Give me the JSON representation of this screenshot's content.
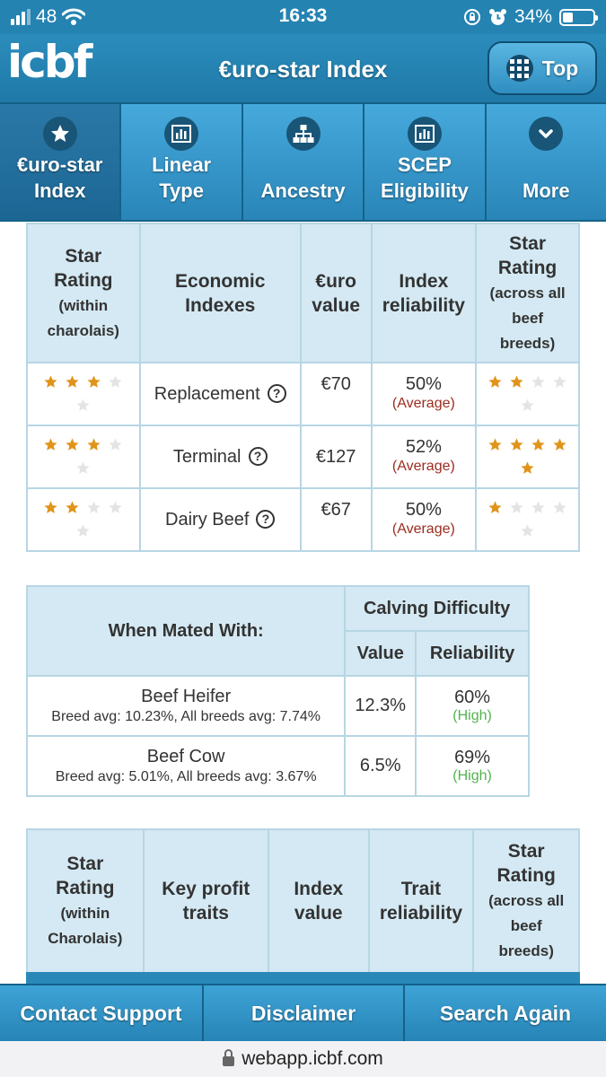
{
  "status_bar": {
    "signal": "48",
    "time": "16:33",
    "battery": "34%",
    "battery_level": 0.34
  },
  "header": {
    "logo": "icbf",
    "title": "€uro-star Index",
    "top_button": "Top"
  },
  "tabs": [
    {
      "label_line1": "€uro-star",
      "label_line2": "Index",
      "icon": "star-icon",
      "active": true
    },
    {
      "label_line1": "Linear",
      "label_line2": "Type",
      "icon": "bar-chart-icon",
      "active": false
    },
    {
      "label_line1": "",
      "label_line2": "Ancestry",
      "icon": "hierarchy-icon",
      "active": false
    },
    {
      "label_line1": "SCEP",
      "label_line2": "Eligibility",
      "icon": "bar-chart-icon",
      "active": false
    },
    {
      "label_line1": "",
      "label_line2": "More",
      "icon": "chevron-down-icon",
      "active": false
    }
  ],
  "economic_table": {
    "headers": {
      "star_within_1": "Star",
      "star_within_2": "Rating",
      "star_within_3": "(within",
      "star_within_4": "charolais)",
      "econ_1": "Economic",
      "econ_2": "Indexes",
      "euro_1": "€uro",
      "euro_2": "value",
      "rel_1": "Index",
      "rel_2": "reliability",
      "star_across_1": "Star",
      "star_across_2": "Rating",
      "star_across_3": "(across all",
      "star_across_4": "beef",
      "star_across_5": "breeds)"
    },
    "rows": [
      {
        "name": "Replacement",
        "value": "€70",
        "reliability": "50%",
        "reliability_label": "(Average)",
        "stars_within": 3,
        "stars_across": 2
      },
      {
        "name": "Terminal",
        "value": "€127",
        "reliability": "52%",
        "reliability_label": "(Average)",
        "stars_within": 3,
        "stars_across": 5
      },
      {
        "name": "Dairy Beef",
        "value": "€67",
        "reliability": "50%",
        "reliability_label": "(Average)",
        "stars_within": 2,
        "stars_across": 1
      }
    ]
  },
  "calving_table": {
    "mated_header": "When Mated With:",
    "group_header": "Calving Difficulty",
    "value_header": "Value",
    "reliability_header": "Reliability",
    "rows": [
      {
        "name": "Beef Heifer",
        "sub": "Breed avg: 10.23%, All breeds avg: 7.74%",
        "value": "12.3%",
        "reliability": "60%",
        "reliability_label": "(High)"
      },
      {
        "name": "Beef Cow",
        "sub": "Breed avg: 5.01%, All breeds avg: 3.67%",
        "value": "6.5%",
        "reliability": "69%",
        "reliability_label": "(High)"
      }
    ]
  },
  "traits_table": {
    "star_within_1": "Star",
    "star_within_2": "Rating",
    "star_within_3": "(within",
    "star_within_4": "Charolais)",
    "key_1": "Key profit",
    "key_2": "traits",
    "idx_1": "Index",
    "idx_2": "value",
    "trait_1": "Trait",
    "trait_2": "reliability",
    "star_across_1": "Star",
    "star_across_2": "Rating",
    "star_across_3": "(across all",
    "star_across_4": "beef",
    "star_across_5": "breeds)"
  },
  "bottom_bar": {
    "contact": "Contact Support",
    "disclaimer": "Disclaimer",
    "search": "Search Again"
  },
  "url": "webapp.icbf.com",
  "colors": {
    "brand_blue": "#2a88b8",
    "star_filled": "#e0941a",
    "star_empty": "#e4e4e4",
    "average": "#9b2c1f",
    "high": "#53b34d",
    "header_cell": "#d4e9f3"
  }
}
